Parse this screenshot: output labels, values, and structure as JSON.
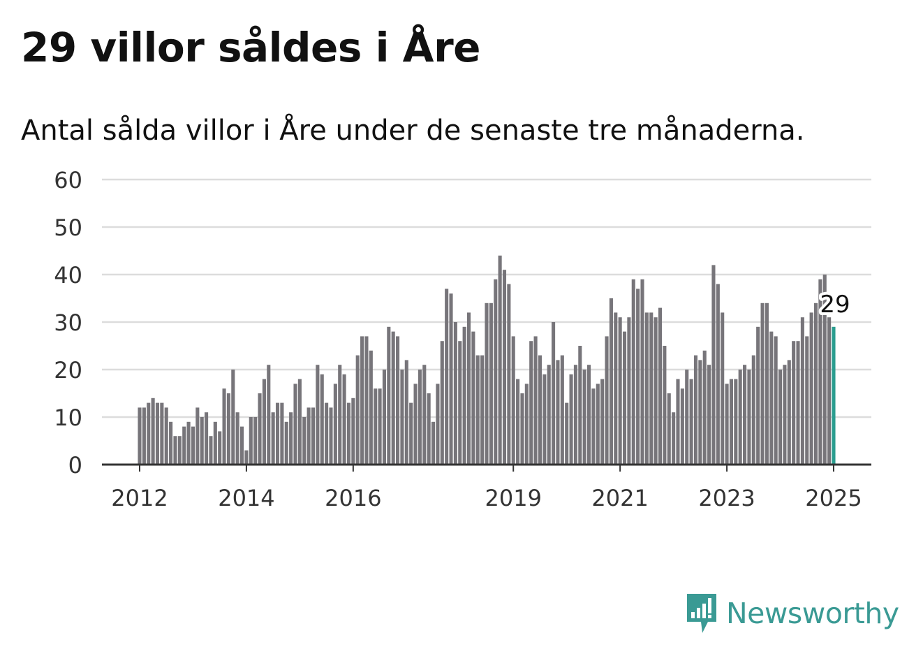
{
  "title": "29 villor såldes i Åre",
  "subtitle": "Antal sålda villor i Åre under de senaste tre månaderna.",
  "brand": {
    "name": "Newsworthy",
    "color": "#3a9a94",
    "icon": "newsworthy-logo-icon"
  },
  "colors": {
    "bar": "#77757a",
    "highlight": "#2a9d8f",
    "grid": "#dcdcdc",
    "axis": "#333333"
  },
  "chart_data": {
    "type": "bar",
    "title": "29 villor såldes i Åre",
    "subtitle": "Antal sålda villor i Åre under de senaste tre månaderna.",
    "xlabel": "",
    "ylabel": "",
    "ylim": [
      0,
      60
    ],
    "yticks": [
      "0",
      "10",
      "20",
      "30",
      "40",
      "50",
      "60"
    ],
    "xticks": [
      {
        "label": "2012",
        "date": "2012-01"
      },
      {
        "label": "2014",
        "date": "2014-01"
      },
      {
        "label": "2016",
        "date": "2016-01"
      },
      {
        "label": "2019",
        "date": "2019-01"
      },
      {
        "label": "2021",
        "date": "2021-01"
      },
      {
        "label": "2023",
        "date": "2023-01"
      },
      {
        "label": "2025",
        "date": "2025-01"
      }
    ],
    "grid": true,
    "start": "2012-01",
    "end": "2025-01",
    "frequency": "monthly",
    "values": [
      12,
      12,
      13,
      14,
      13,
      13,
      12,
      9,
      6,
      6,
      8,
      9,
      8,
      12,
      10,
      11,
      6,
      9,
      7,
      16,
      15,
      20,
      11,
      8,
      3,
      10,
      10,
      15,
      18,
      21,
      11,
      13,
      13,
      9,
      11,
      17,
      18,
      10,
      12,
      12,
      21,
      19,
      13,
      12,
      17,
      21,
      19,
      13,
      14,
      23,
      27,
      27,
      24,
      16,
      16,
      20,
      29,
      28,
      27,
      20,
      22,
      13,
      17,
      20,
      21,
      15,
      9,
      17,
      26,
      37,
      36,
      30,
      26,
      29,
      32,
      28,
      23,
      23,
      34,
      34,
      39,
      44,
      41,
      38,
      27,
      18,
      15,
      17,
      26,
      27,
      23,
      19,
      21,
      30,
      22,
      23,
      13,
      19,
      21,
      25,
      20,
      21,
      16,
      17,
      18,
      27,
      35,
      32,
      31,
      28,
      31,
      39,
      37,
      39,
      32,
      32,
      31,
      33,
      25,
      15,
      11,
      18,
      16,
      20,
      18,
      23,
      22,
      24,
      21,
      42,
      38,
      32,
      17,
      18,
      18,
      20,
      21,
      20,
      23,
      29,
      34,
      34,
      28,
      27,
      20,
      21,
      22,
      26,
      26,
      31,
      27,
      32,
      34,
      39,
      40,
      31,
      29
    ],
    "highlight": {
      "date": "2025-01",
      "value": 29,
      "label": "29"
    }
  }
}
